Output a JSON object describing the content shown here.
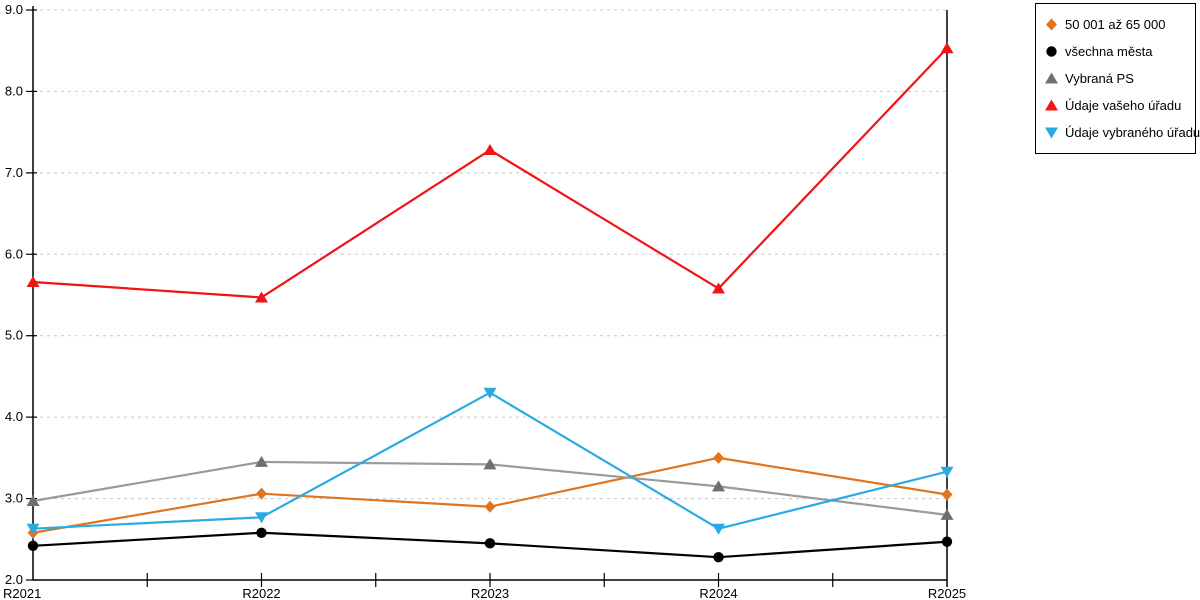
{
  "chart_data": {
    "type": "line",
    "categories": [
      "R2021",
      "R2022",
      "R2023",
      "R2024",
      "R2025"
    ],
    "series": [
      {
        "name": "50 001 až 65 000",
        "marker": "diamond",
        "color": "#E0751E",
        "values": [
          2.58,
          3.06,
          2.9,
          3.5,
          3.05
        ]
      },
      {
        "name": "všechna města",
        "marker": "circle",
        "color": "#000000",
        "values": [
          2.42,
          2.58,
          2.45,
          2.28,
          2.47
        ]
      },
      {
        "name": "Vybraná PS",
        "marker": "triangle-up",
        "color": "#6F6F6F",
        "line_color": "#9A9A9A",
        "values": [
          2.97,
          3.45,
          3.42,
          3.15,
          2.8
        ]
      },
      {
        "name": "Údaje vašeho úřadu",
        "marker": "triangle-up",
        "color": "#F01414",
        "values": [
          5.66,
          5.47,
          7.28,
          5.58,
          8.53
        ]
      },
      {
        "name": "Údaje vybraného úřadu",
        "marker": "triangle-down",
        "color": "#29ABE2",
        "values": [
          2.63,
          2.77,
          4.3,
          2.63,
          3.33
        ]
      }
    ],
    "ylim": [
      2.0,
      9.0
    ],
    "ytick_labels": [
      "2.0",
      "3.0",
      "4.0",
      "5.0",
      "6.0",
      "7.0",
      "8.0",
      "9.0"
    ],
    "xlabel": "",
    "ylabel": "",
    "title": "",
    "grid": "horizontal-dashed",
    "legend_position": "top-right"
  },
  "colors": {
    "background": "#FFFFFF",
    "axis": "#000000",
    "grid": "#C8C8C8",
    "text": "#000000"
  }
}
